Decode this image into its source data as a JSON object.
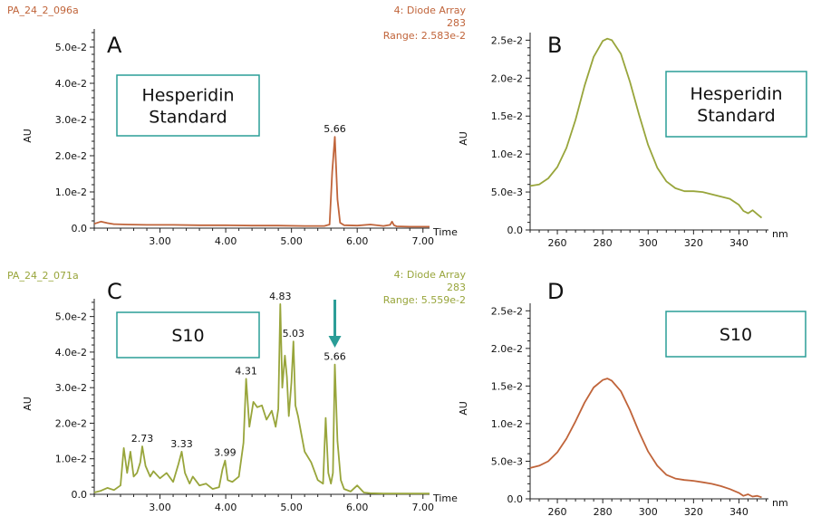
{
  "colors": {
    "orange": "#c0643a",
    "olive": "#98a53b",
    "teal": "#2a9d97",
    "axis": "#222222",
    "text": "#111111"
  },
  "panels": {
    "A": {
      "letter": "A",
      "sample_id": "PA_24_2_096a",
      "header_lines": [
        "4: Diode Array",
        "283",
        "Range: 2.583e-2"
      ],
      "box_lines": [
        "Hesperidin",
        "Standard"
      ],
      "ylabel": "AU",
      "xlabel": "Time"
    },
    "B": {
      "letter": "B",
      "box_lines": [
        "Hesperidin",
        "Standard"
      ],
      "ylabel": "AU",
      "xlabel": "nm"
    },
    "C": {
      "letter": "C",
      "sample_id": "PA_24_2_071a",
      "header_lines": [
        "4: Diode Array",
        "283",
        "Range: 5.559e-2"
      ],
      "box_lines": [
        "S10"
      ],
      "ylabel": "AU",
      "xlabel": "Time"
    },
    "D": {
      "letter": "D",
      "box_lines": [
        "S10"
      ],
      "ylabel": "AU",
      "xlabel": "nm"
    }
  },
  "chart_data": [
    {
      "id": "A",
      "type": "line",
      "title": "",
      "xlabel": "Time",
      "ylabel": "AU",
      "xlim": [
        2.0,
        7.1
      ],
      "ylim": [
        0,
        0.055
      ],
      "xticks": [
        3.0,
        4.0,
        5.0,
        6.0,
        7.0
      ],
      "xtick_labels": [
        "3.00",
        "4.00",
        "5.00",
        "6.00",
        "7.00"
      ],
      "yticks": [
        0,
        0.01,
        0.02,
        0.03,
        0.04,
        0.05
      ],
      "ytick_labels": [
        "0.0",
        "1.0e-2",
        "2.0e-2",
        "3.0e-2",
        "4.0e-2",
        "5.0e-2"
      ],
      "color": "#c0643a",
      "series": [
        {
          "name": "283",
          "x": [
            2.0,
            2.1,
            2.2,
            2.3,
            2.5,
            2.8,
            3.2,
            3.6,
            4.0,
            4.4,
            4.8,
            5.2,
            5.5,
            5.58,
            5.62,
            5.66,
            5.7,
            5.74,
            5.8,
            6.0,
            6.2,
            6.4,
            6.5,
            6.53,
            6.56,
            6.6,
            6.8,
            7.1
          ],
          "y": [
            0.0012,
            0.0018,
            0.0014,
            0.0011,
            0.001,
            0.0009,
            0.0009,
            0.0008,
            0.0008,
            0.0007,
            0.0007,
            0.0006,
            0.0006,
            0.001,
            0.0155,
            0.0252,
            0.008,
            0.0015,
            0.0008,
            0.0007,
            0.001,
            0.0006,
            0.0009,
            0.0018,
            0.0008,
            0.0005,
            0.0004,
            0.0004
          ]
        }
      ],
      "annotations": [
        {
          "x": 5.66,
          "y": 0.0252,
          "label": "5.66"
        }
      ]
    },
    {
      "id": "B",
      "type": "line",
      "title": "",
      "xlabel": "nm",
      "ylabel": "AU",
      "xlim": [
        248,
        353
      ],
      "ylim": [
        0,
        0.026
      ],
      "xticks": [
        260,
        280,
        300,
        320,
        340
      ],
      "xtick_labels": [
        "260",
        "280",
        "300",
        "320",
        "340"
      ],
      "yticks": [
        0,
        0.005,
        0.01,
        0.015,
        0.02,
        0.025
      ],
      "ytick_labels": [
        "0.0",
        "5.0e-3",
        "1.0e-2",
        "1.5e-2",
        "2.0e-2",
        "2.5e-2"
      ],
      "color": "#98a53b",
      "series": [
        {
          "name": "spectrum",
          "x": [
            248,
            252,
            256,
            260,
            264,
            268,
            272,
            276,
            280,
            282,
            284,
            288,
            292,
            296,
            300,
            304,
            308,
            312,
            316,
            320,
            324,
            328,
            332,
            336,
            340,
            342,
            344,
            346,
            348,
            350
          ],
          "y": [
            0.0058,
            0.006,
            0.0068,
            0.0083,
            0.0108,
            0.0145,
            0.019,
            0.0228,
            0.0249,
            0.0252,
            0.025,
            0.0232,
            0.0195,
            0.0152,
            0.0112,
            0.0082,
            0.0064,
            0.0055,
            0.0051,
            0.0051,
            0.005,
            0.0047,
            0.0044,
            0.0041,
            0.0033,
            0.0025,
            0.0022,
            0.0026,
            0.0021,
            0.0016
          ]
        }
      ]
    },
    {
      "id": "C",
      "type": "line",
      "title": "",
      "xlabel": "Time",
      "ylabel": "AU",
      "xlim": [
        2.0,
        7.1
      ],
      "ylim": [
        0,
        0.055
      ],
      "xticks": [
        3.0,
        4.0,
        5.0,
        6.0,
        7.0
      ],
      "xtick_labels": [
        "3.00",
        "4.00",
        "5.00",
        "6.00",
        "7.00"
      ],
      "yticks": [
        0,
        0.01,
        0.02,
        0.03,
        0.04,
        0.05
      ],
      "ytick_labels": [
        "0.0",
        "1.0e-2",
        "2.0e-2",
        "3.0e-2",
        "4.0e-2",
        "5.0e-2"
      ],
      "color": "#98a53b",
      "series": [
        {
          "name": "283",
          "x": [
            2.0,
            2.1,
            2.2,
            2.3,
            2.4,
            2.45,
            2.5,
            2.55,
            2.6,
            2.65,
            2.7,
            2.73,
            2.78,
            2.85,
            2.9,
            3.0,
            3.1,
            3.2,
            3.28,
            3.33,
            3.38,
            3.45,
            3.5,
            3.6,
            3.7,
            3.8,
            3.9,
            3.95,
            3.99,
            4.03,
            4.1,
            4.2,
            4.27,
            4.31,
            4.36,
            4.42,
            4.48,
            4.55,
            4.62,
            4.7,
            4.76,
            4.8,
            4.83,
            4.86,
            4.9,
            4.93,
            4.96,
            5.0,
            5.03,
            5.06,
            5.1,
            5.15,
            5.2,
            5.3,
            5.4,
            5.48,
            5.52,
            5.56,
            5.6,
            5.63,
            5.66,
            5.7,
            5.75,
            5.8,
            5.9,
            6.0,
            6.1,
            6.2,
            6.4,
            6.6,
            6.8,
            7.1
          ],
          "y": [
            0.0005,
            0.001,
            0.0018,
            0.0012,
            0.0025,
            0.013,
            0.006,
            0.012,
            0.005,
            0.006,
            0.009,
            0.0135,
            0.008,
            0.005,
            0.0065,
            0.0045,
            0.006,
            0.0035,
            0.0085,
            0.012,
            0.006,
            0.003,
            0.005,
            0.0025,
            0.003,
            0.0015,
            0.002,
            0.007,
            0.0095,
            0.004,
            0.0035,
            0.005,
            0.0145,
            0.0325,
            0.019,
            0.026,
            0.0245,
            0.025,
            0.021,
            0.0235,
            0.019,
            0.024,
            0.0535,
            0.03,
            0.039,
            0.033,
            0.022,
            0.0315,
            0.043,
            0.025,
            0.022,
            0.017,
            0.012,
            0.009,
            0.004,
            0.003,
            0.0215,
            0.006,
            0.003,
            0.006,
            0.0365,
            0.015,
            0.004,
            0.0015,
            0.0008,
            0.0025,
            0.0005,
            0.0003,
            0.0002,
            0.0002,
            0.0002,
            0.0002
          ]
        }
      ],
      "annotations": [
        {
          "x": 2.73,
          "y": 0.0135,
          "label": "2.73"
        },
        {
          "x": 3.33,
          "y": 0.012,
          "label": "3.33"
        },
        {
          "x": 3.99,
          "y": 0.0095,
          "label": "3.99"
        },
        {
          "x": 4.31,
          "y": 0.0325,
          "label": "4.31"
        },
        {
          "x": 4.83,
          "y": 0.0535,
          "label": "4.83"
        },
        {
          "x": 5.03,
          "y": 0.043,
          "label": "5.03"
        },
        {
          "x": 5.66,
          "y": 0.0365,
          "label": "5.66"
        }
      ],
      "arrow_at_x": 5.66
    },
    {
      "id": "D",
      "type": "line",
      "title": "",
      "xlabel": "nm",
      "ylabel": "AU",
      "xlim": [
        248,
        353
      ],
      "ylim": [
        0,
        0.026
      ],
      "xticks": [
        260,
        280,
        300,
        320,
        340
      ],
      "xtick_labels": [
        "260",
        "280",
        "300",
        "320",
        "340"
      ],
      "yticks": [
        0,
        0.005,
        0.01,
        0.015,
        0.02,
        0.025
      ],
      "ytick_labels": [
        "0.0",
        "5.0e-3",
        "1.0e-2",
        "1.5e-2",
        "2.0e-2",
        "2.5e-2"
      ],
      "color": "#c0643a",
      "series": [
        {
          "name": "spectrum",
          "x": [
            248,
            252,
            256,
            260,
            264,
            268,
            272,
            276,
            280,
            282,
            284,
            288,
            292,
            296,
            300,
            304,
            308,
            312,
            316,
            320,
            324,
            328,
            332,
            336,
            340,
            342,
            344,
            346,
            348,
            350
          ],
          "y": [
            0.0041,
            0.0044,
            0.005,
            0.0062,
            0.008,
            0.0103,
            0.0128,
            0.0148,
            0.0158,
            0.016,
            0.0157,
            0.0143,
            0.0118,
            0.0089,
            0.0063,
            0.0044,
            0.0032,
            0.0027,
            0.0025,
            0.0024,
            0.0022,
            0.002,
            0.0017,
            0.0013,
            0.0008,
            0.0004,
            0.0006,
            0.0003,
            0.0004,
            0.0002
          ]
        }
      ]
    }
  ]
}
